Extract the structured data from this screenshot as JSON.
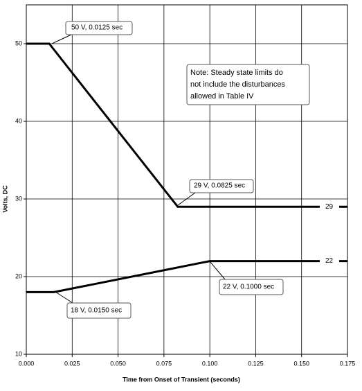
{
  "chart_data": {
    "type": "line",
    "xlabel": "Time from Onset of Transient (seconds)",
    "ylabel": "Volts, DC",
    "xlim": [
      0,
      0.175
    ],
    "ylim": [
      10,
      55
    ],
    "xticks": [
      {
        "value": 0,
        "label": "0.000"
      },
      {
        "value": 0.025,
        "label": "0.025"
      },
      {
        "value": 0.05,
        "label": "0.050"
      },
      {
        "value": 0.075,
        "label": "0.075"
      },
      {
        "value": 0.1,
        "label": "0.100"
      },
      {
        "value": 0.125,
        "label": "0.125"
      },
      {
        "value": 0.15,
        "label": "0.150"
      },
      {
        "value": 0.175,
        "label": "0.175"
      }
    ],
    "yticks": [
      10,
      20,
      30,
      40,
      50
    ],
    "grid": true,
    "series": [
      {
        "color": "#000000",
        "x": [
          0,
          0.0125,
          0.0825,
          0.16,
          0.165,
          0.17,
          0.175
        ],
        "values": [
          50,
          50,
          29,
          29,
          null,
          29,
          29
        ]
      },
      {
        "color": "#000000",
        "x": [
          0,
          0.015,
          0.1,
          0.16,
          0.165,
          0.17,
          0.175
        ],
        "values": [
          18,
          18,
          22,
          22,
          null,
          22,
          22
        ]
      }
    ],
    "annotations": [
      "50 V, 0.0125 sec",
      "29 V, 0.0825 sec",
      "22 V, 0.1000 sec",
      "18 V, 0.0150 sec",
      "29",
      "22"
    ],
    "note": [
      "Note: Steady state limits do",
      "not include the disturbances",
      "allowed in Table IV"
    ]
  }
}
